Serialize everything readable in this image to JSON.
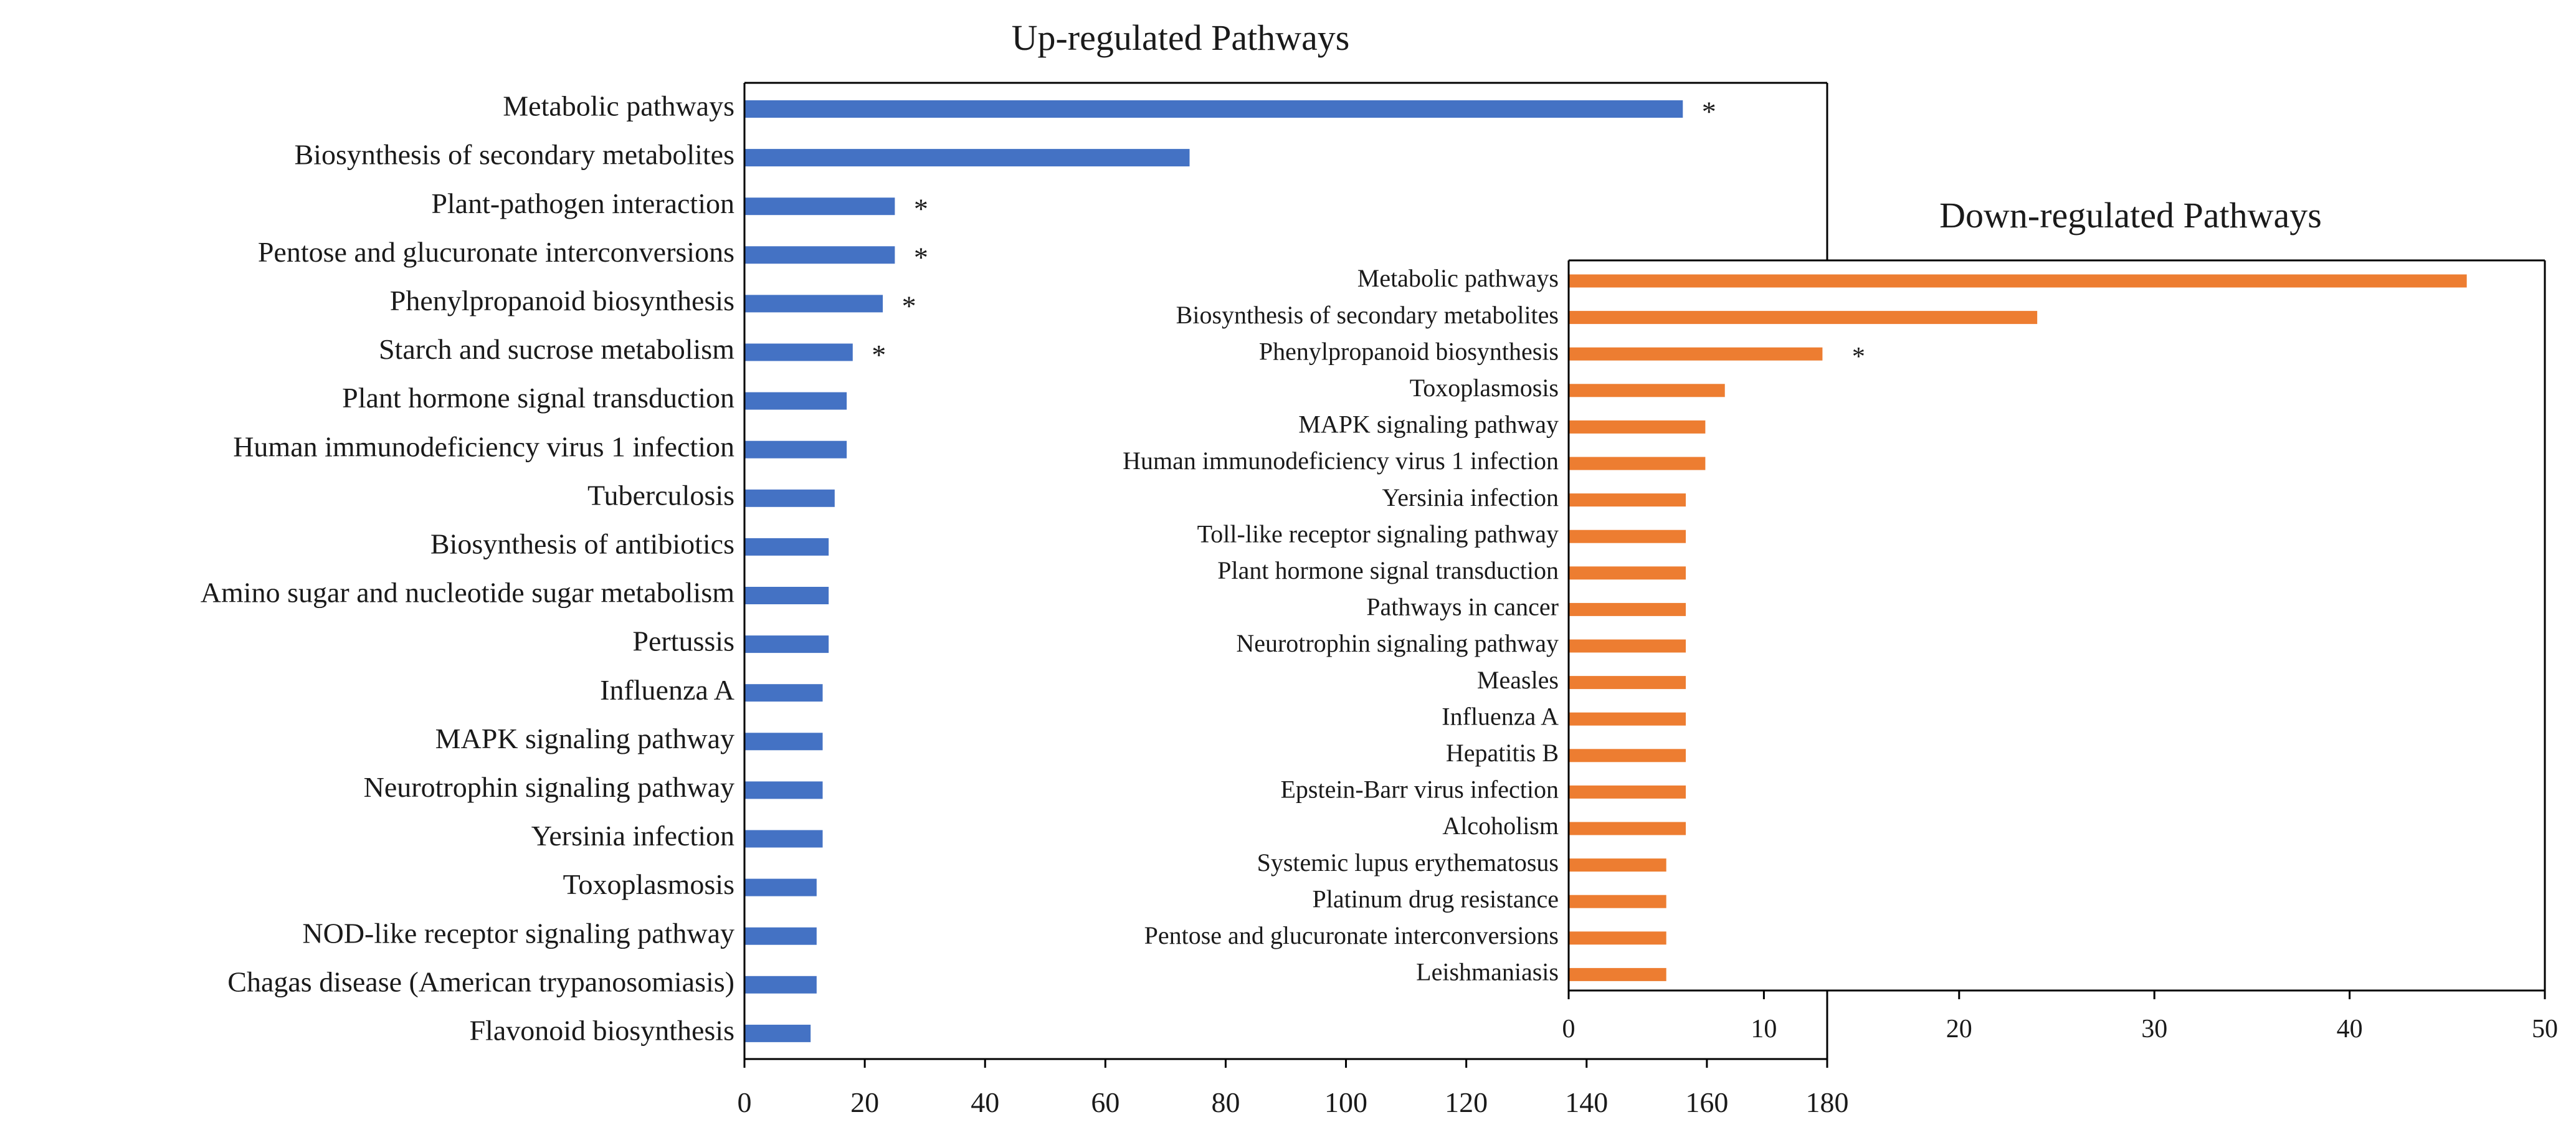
{
  "colors": {
    "up": "#4472C4",
    "down": "#ED7D31",
    "axis": "#000000",
    "text": "#1a1a1a"
  },
  "chart_data": [
    {
      "type": "bar",
      "orientation": "horizontal",
      "title": "Up-regulated Pathways",
      "xlabel": "",
      "ylabel": "",
      "xlim": [
        0,
        180
      ],
      "xticks": [
        0,
        20,
        40,
        60,
        80,
        100,
        120,
        140,
        160,
        180
      ],
      "grid": false,
      "categories": [
        "Metabolic pathways",
        "Biosynthesis of secondary metabolites",
        "Plant-pathogen interaction",
        "Pentose and glucuronate interconversions",
        "Phenylpropanoid biosynthesis",
        "Starch and sucrose metabolism",
        "Plant hormone signal transduction",
        "Human immunodeficiency virus 1 infection",
        "Tuberculosis",
        "Biosynthesis of antibiotics",
        "Amino sugar and nucleotide sugar metabolism",
        "Pertussis",
        "Influenza A",
        "MAPK signaling pathway",
        "Neurotrophin signaling pathway",
        "Yersinia infection",
        "Toxoplasmosis",
        "NOD-like receptor signaling pathway",
        "Chagas disease (American trypanosomiasis)",
        "Flavonoid biosynthesis"
      ],
      "values": [
        156,
        74,
        25,
        25,
        23,
        18,
        17,
        17,
        15,
        14,
        14,
        14,
        13,
        13,
        13,
        13,
        12,
        12,
        12,
        11
      ],
      "significant": [
        "*",
        "",
        "*",
        "*",
        "*",
        "*",
        "",
        "",
        "",
        "",
        "",
        "",
        "",
        "",
        "",
        "",
        "",
        "",
        "",
        ""
      ]
    },
    {
      "type": "bar",
      "orientation": "horizontal",
      "title": "Down-regulated Pathways",
      "xlabel": "",
      "ylabel": "",
      "xlim": [
        0,
        50
      ],
      "xticks": [
        0,
        10,
        20,
        30,
        40,
        50
      ],
      "grid": false,
      "categories": [
        "Metabolic pathways",
        "Biosynthesis of secondary metabolites",
        "Phenylpropanoid biosynthesis",
        "Toxoplasmosis",
        "MAPK signaling pathway",
        "Human immunodeficiency virus 1 infection",
        "Yersinia infection",
        "Toll-like receptor signaling pathway",
        "Plant hormone signal transduction",
        "Pathways in cancer",
        "Neurotrophin signaling pathway",
        "Measles",
        "Influenza A",
        "Hepatitis B",
        "Epstein-Barr virus infection",
        "Alcoholism",
        "Systemic lupus erythematosus",
        "Platinum drug resistance",
        "Pentose and glucuronate interconversions",
        "Leishmaniasis"
      ],
      "values": [
        46,
        24,
        13,
        8,
        7,
        7,
        6,
        6,
        6,
        6,
        6,
        6,
        6,
        6,
        6,
        6,
        5,
        5,
        5,
        5
      ],
      "significant": [
        "",
        "",
        "*",
        "",
        "",
        "",
        "",
        "",
        "",
        "",
        "",
        "",
        "",
        "",
        "",
        "",
        "",
        "",
        "",
        ""
      ]
    }
  ]
}
